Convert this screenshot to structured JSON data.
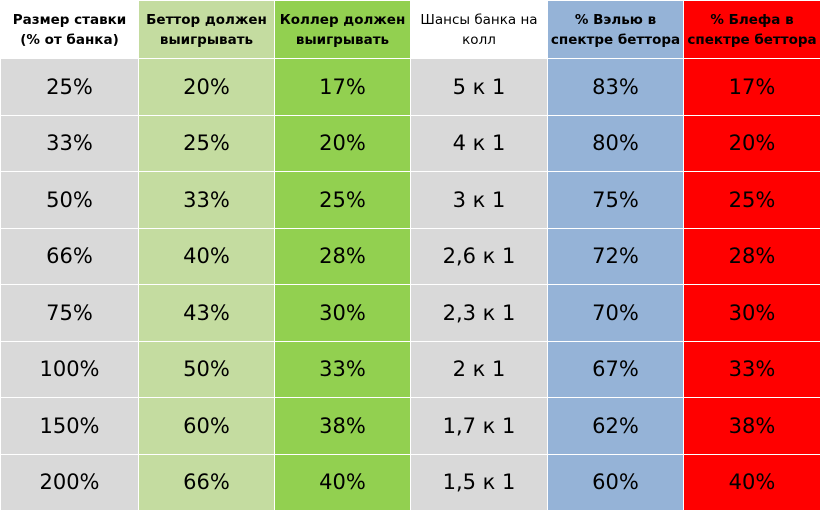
{
  "header": {
    "stake_size": [
      "Размер ставки",
      "(% от банка)"
    ],
    "bettor_must_win": [
      "Беттор должен",
      "выигрывать"
    ],
    "caller_must_win": [
      "Коллер должен",
      "выигрывать"
    ],
    "pot_odds": [
      "Шансы банка на",
      "колл"
    ],
    "value_pct": [
      "% Вэлью в",
      "спектре беттора"
    ],
    "bluff_pct": [
      "% Блефа в",
      "спектре беттора"
    ]
  },
  "rows": [
    {
      "stake": "25%",
      "bettor": "20%",
      "caller": "17%",
      "odds": "5 к 1",
      "value": "83%",
      "bluff": "17%"
    },
    {
      "stake": "33%",
      "bettor": "25%",
      "caller": "20%",
      "odds": "4 к 1",
      "value": "80%",
      "bluff": "20%"
    },
    {
      "stake": "50%",
      "bettor": "33%",
      "caller": "25%",
      "odds": "3 к 1",
      "value": "75%",
      "bluff": "25%"
    },
    {
      "stake": "66%",
      "bettor": "40%",
      "caller": "28%",
      "odds": "2,6 к 1",
      "value": "72%",
      "bluff": "28%"
    },
    {
      "stake": "75%",
      "bettor": "43%",
      "caller": "30%",
      "odds": "2,3 к 1",
      "value": "70%",
      "bluff": "30%"
    },
    {
      "stake": "100%",
      "bettor": "50%",
      "caller": "33%",
      "odds": "2 к 1",
      "value": "67%",
      "bluff": "33%"
    },
    {
      "stake": "150%",
      "bettor": "60%",
      "caller": "38%",
      "odds": "1,7 к 1",
      "value": "62%",
      "bluff": "38%"
    },
    {
      "stake": "200%",
      "bettor": "66%",
      "caller": "40%",
      "odds": "1,5 к 1",
      "value": "60%",
      "bluff": "40%"
    }
  ],
  "colors": {
    "stake_bg": "#d9d9d9",
    "bettor_bg": "#c4dca0",
    "caller_bg": "#92d050",
    "odds_bg": "#d9d9d9",
    "value_bg": "#95b3d7",
    "bluff_bg": "#ff0000"
  }
}
